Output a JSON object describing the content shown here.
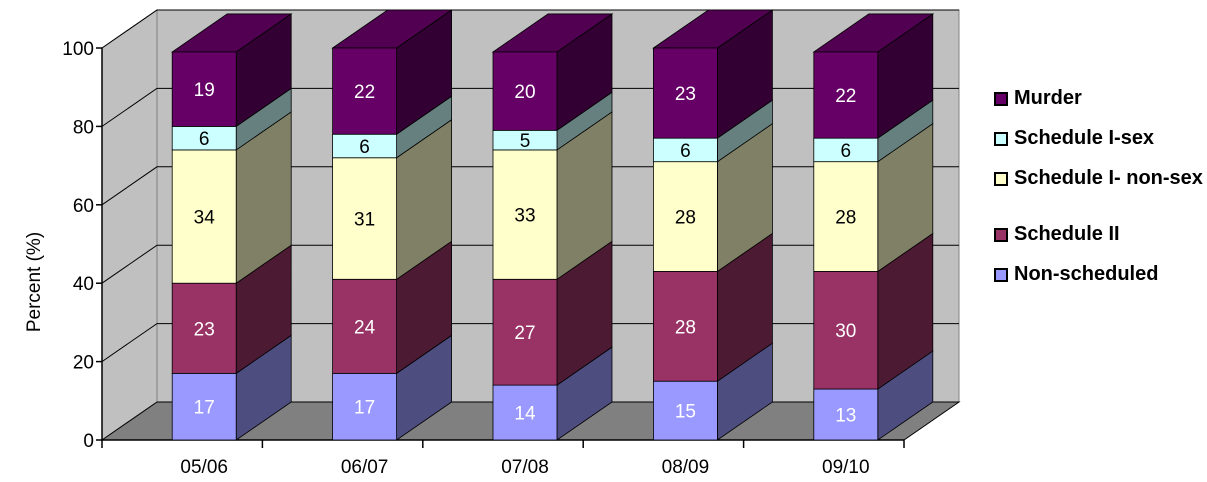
{
  "chart_data": {
    "type": "bar",
    "stacked": true,
    "three_d": true,
    "title": "",
    "xlabel": "",
    "ylabel": "Percent (%)",
    "ylim": [
      0,
      100
    ],
    "yticks": [
      "0",
      "20",
      "40",
      "60",
      "80",
      "100"
    ],
    "categories": [
      "05/06",
      "06/07",
      "07/08",
      "08/09",
      "09/10"
    ],
    "series": [
      {
        "name": "Non-scheduled",
        "color": "#9999FF",
        "values": [
          17,
          17,
          14,
          15,
          13
        ]
      },
      {
        "name": "Schedule II",
        "color": "#993366",
        "values": [
          23,
          24,
          27,
          28,
          30
        ]
      },
      {
        "name": "Schedule I- non-sex",
        "color": "#FFFFCC",
        "values": [
          34,
          31,
          33,
          28,
          28
        ]
      },
      {
        "name": "Schedule I-sex",
        "color": "#CCFFFF",
        "values": [
          6,
          6,
          5,
          6,
          6
        ]
      },
      {
        "name": "Murder",
        "color": "#660066",
        "values": [
          19,
          22,
          20,
          23,
          22
        ]
      }
    ],
    "legend": {
      "placement": "right",
      "entries": [
        "Murder",
        "Schedule I-sex",
        "Schedule I- non-sex",
        "Schedule II",
        "Non-scheduled"
      ]
    },
    "grid": true,
    "wall_color": "#C0C0C0",
    "floor_color": "#808080"
  }
}
